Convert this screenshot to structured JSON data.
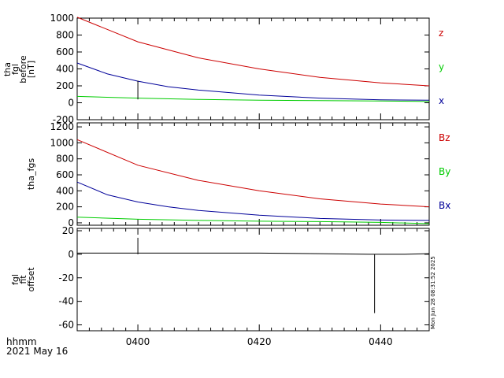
{
  "chart_data": [
    {
      "type": "line",
      "ylabel_lines": [
        "tha",
        "fgl",
        "before",
        "[nT]"
      ],
      "ylim": [
        -200,
        1000
      ],
      "yticks": [
        -200,
        0,
        200,
        400,
        600,
        800,
        1000
      ],
      "xlim": [
        230,
        288
      ],
      "series": [
        {
          "name": "z",
          "color": "#cc0000",
          "x": [
            230,
            240,
            250,
            260,
            270,
            280,
            288
          ],
          "y": [
            1010,
            720,
            530,
            400,
            300,
            235,
            200
          ]
        },
        {
          "name": "y",
          "color": "#00cc00",
          "x": [
            230,
            240,
            250,
            260,
            270,
            280,
            288
          ],
          "y": [
            75,
            55,
            40,
            30,
            25,
            20,
            15
          ]
        },
        {
          "name": "x",
          "color": "#000099",
          "x": [
            230,
            235,
            240,
            245,
            250,
            260,
            270,
            280,
            288
          ],
          "y": [
            470,
            340,
            255,
            190,
            150,
            90,
            55,
            35,
            30
          ]
        }
      ],
      "spikes": [
        {
          "x": 240,
          "y_from": 40,
          "y_to": 260
        }
      ]
    },
    {
      "type": "line",
      "ylabel": "tha_fgs",
      "ylim": [
        -30,
        1250
      ],
      "yticks": [
        0,
        200,
        400,
        600,
        800,
        1000,
        1200
      ],
      "xlim": [
        230,
        288
      ],
      "series": [
        {
          "name": "Bz",
          "color": "#cc0000",
          "x": [
            230,
            240,
            250,
            260,
            270,
            280,
            288
          ],
          "y": [
            1040,
            720,
            530,
            400,
            300,
            235,
            200
          ]
        },
        {
          "name": "By",
          "color": "#00cc00",
          "x": [
            230,
            240,
            250,
            260,
            270,
            280,
            288
          ],
          "y": [
            70,
            45,
            30,
            20,
            15,
            5,
            -10
          ]
        },
        {
          "name": "Bx",
          "color": "#000099",
          "x": [
            230,
            235,
            240,
            245,
            250,
            260,
            270,
            280,
            288
          ],
          "y": [
            510,
            350,
            260,
            200,
            155,
            95,
            55,
            35,
            30
          ]
        }
      ]
    },
    {
      "type": "line",
      "ylabel_lines": [
        "fgl",
        "fit",
        "offset"
      ],
      "ylim": [
        -65,
        22
      ],
      "yticks": [
        -60,
        -40,
        -20,
        0,
        20
      ],
      "xlim": [
        230,
        288
      ],
      "series": [
        {
          "name": "",
          "color": "#000000",
          "x": [
            230,
            240,
            260,
            270,
            278,
            284,
            288
          ],
          "y": [
            1,
            1,
            1,
            0.5,
            0,
            0,
            0.5
          ]
        }
      ],
      "spikes": [
        {
          "x": 240,
          "y_from": 0,
          "y_to": 14
        },
        {
          "x": 279,
          "y_from": 0,
          "y_to": -50
        }
      ],
      "xtick_labels": [
        "0400",
        "0420",
        "0440"
      ],
      "xticks": [
        240,
        260,
        280
      ]
    }
  ],
  "footer": {
    "unit_label": "hhmm",
    "date_label": "2021 May 16",
    "timestamp": "Mon Jun 28 08:31:52 2025"
  }
}
